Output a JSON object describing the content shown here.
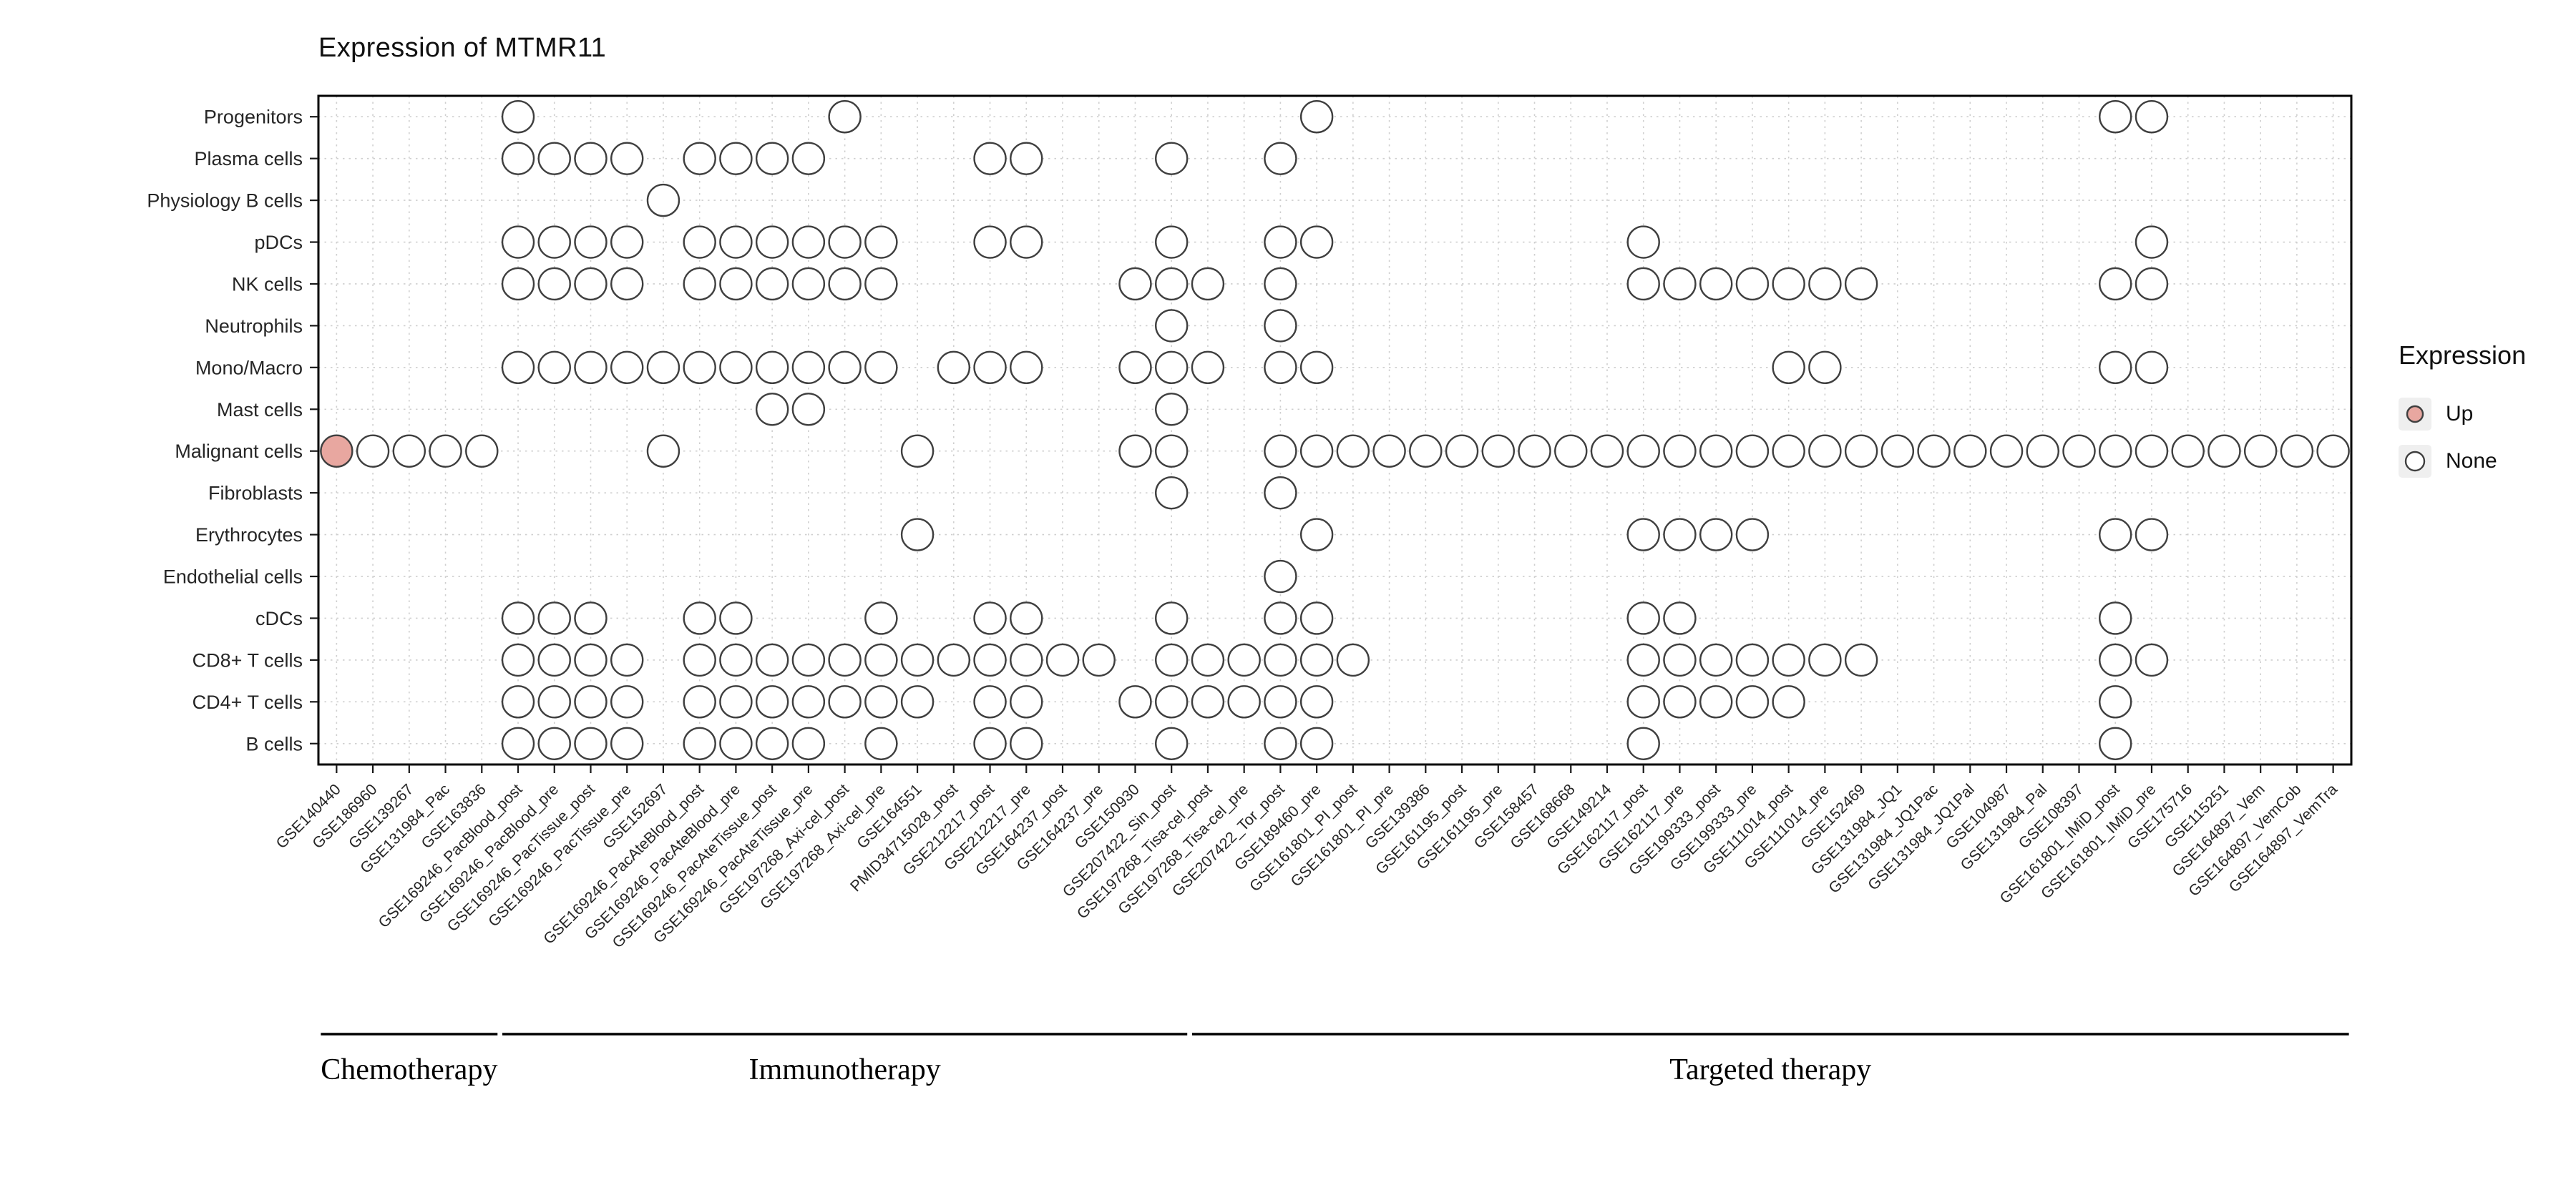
{
  "chart_data": {
    "type": "heatmap",
    "subtype": "dot-matrix",
    "title": "Expression of MTMR11",
    "gene": "MTMR11",
    "xlabel": "",
    "ylabel": "",
    "grid": true,
    "legend_position": "right",
    "legend": {
      "title": "Expression",
      "items": [
        {
          "label": "Up",
          "color": "#E8A7A0"
        },
        {
          "label": "None",
          "color": "#FFFFFF"
        }
      ]
    },
    "colors": {
      "up": "#E8A7A0",
      "none": "#FFFFFF",
      "stroke": "#3F3F3F",
      "grid": "#CFCFCF",
      "border": "#000000",
      "tick": "#1A1A1A",
      "axis_text": "#262626"
    },
    "rows": [
      "Progenitors",
      "Plasma cells",
      "Physiology B cells",
      "pDCs",
      "NK cells",
      "Neutrophils",
      "Mono/Macro",
      "Mast cells",
      "Malignant cells",
      "Fibroblasts",
      "Erythrocytes",
      "Endothelial cells",
      "cDCs",
      "CD8+ T cells",
      "CD4+ T cells",
      "B cells"
    ],
    "columns": [
      "GSE140440",
      "GSE186960",
      "GSE139267",
      "GSE131984_Pac",
      "GSE163836",
      "GSE169246_PacBlood_post",
      "GSE169246_PacBlood_pre",
      "GSE169246_PacTissue_post",
      "GSE169246_PacTissue_pre",
      "GSE152697",
      "GSE169246_PacAteBlood_post",
      "GSE169246_PacAteBlood_pre",
      "GSE169246_PacAteTissue_post",
      "GSE169246_PacAteTissue_pre",
      "GSE197268_Axi-cel_post",
      "GSE197268_Axi-cel_pre",
      "GSE164551",
      "PMID34715028_post",
      "GSE212217_post",
      "GSE212217_pre",
      "GSE164237_post",
      "GSE164237_pre",
      "GSE150930",
      "GSE207422_Sin_post",
      "GSE197268_Tisa-cel_post",
      "GSE197268_Tisa-cel_pre",
      "GSE207422_Tor_post",
      "GSE189460_pre",
      "GSE161801_PI_post",
      "GSE161801_PI_pre",
      "GSE139386",
      "GSE161195_post",
      "GSE161195_pre",
      "GSE158457",
      "GSE168668",
      "GSE149214",
      "GSE162117_post",
      "GSE162117_pre",
      "GSE199333_post",
      "GSE199333_pre",
      "GSE111014_post",
      "GSE111014_pre",
      "GSE152469",
      "GSE131984_JQ1",
      "GSE131984_JQ1Pac",
      "GSE131984_JQ1Pal",
      "GSE104987",
      "GSE131984_Pal",
      "GSE108397",
      "GSE161801_IMiD_post",
      "GSE161801_IMiD_pre",
      "GSE175716",
      "GSE115251",
      "GSE164897_Vem",
      "GSE164897_VemCob",
      "GSE164897_VemTra"
    ],
    "groups": [
      {
        "label": "Chemotherapy",
        "from": 1,
        "to": 5
      },
      {
        "label": "Immunotherapy",
        "from": 6,
        "to": 24
      },
      {
        "label": "Targeted therapy",
        "from": 25,
        "to": 56
      }
    ],
    "cells": [
      {
        "row": "Progenitors",
        "up": [],
        "none": [
          6,
          15,
          28,
          50,
          51
        ]
      },
      {
        "row": "Plasma cells",
        "up": [],
        "none": [
          6,
          7,
          8,
          9,
          11,
          12,
          13,
          14,
          19,
          20,
          24,
          27
        ]
      },
      {
        "row": "Physiology B cells",
        "up": [],
        "none": [
          10
        ]
      },
      {
        "row": "pDCs",
        "up": [],
        "none": [
          6,
          7,
          8,
          9,
          11,
          12,
          13,
          14,
          15,
          16,
          19,
          20,
          24,
          27,
          28,
          37,
          51
        ]
      },
      {
        "row": "NK cells",
        "up": [],
        "none": [
          6,
          7,
          8,
          9,
          11,
          12,
          13,
          14,
          15,
          16,
          23,
          24,
          25,
          27,
          37,
          38,
          39,
          40,
          41,
          42,
          43,
          50,
          51
        ]
      },
      {
        "row": "Neutrophils",
        "up": [],
        "none": [
          24,
          27
        ]
      },
      {
        "row": "Mono/Macro",
        "up": [],
        "none": [
          6,
          7,
          8,
          9,
          10,
          11,
          12,
          13,
          14,
          15,
          16,
          18,
          19,
          20,
          23,
          24,
          25,
          27,
          28,
          41,
          42,
          50,
          51
        ]
      },
      {
        "row": "Mast cells",
        "up": [],
        "none": [
          13,
          14,
          24
        ]
      },
      {
        "row": "Malignant cells",
        "up": [
          1
        ],
        "none": [
          2,
          3,
          4,
          5,
          10,
          17,
          23,
          24,
          27,
          28,
          29,
          30,
          31,
          32,
          33,
          34,
          35,
          36,
          37,
          38,
          39,
          40,
          41,
          42,
          43,
          44,
          45,
          46,
          47,
          48,
          49,
          50,
          51,
          52,
          53,
          54,
          55,
          56
        ]
      },
      {
        "row": "Fibroblasts",
        "up": [],
        "none": [
          24,
          27
        ]
      },
      {
        "row": "Erythrocytes",
        "up": [],
        "none": [
          17,
          28,
          37,
          38,
          39,
          40,
          50,
          51
        ]
      },
      {
        "row": "Endothelial cells",
        "up": [],
        "none": [
          27
        ]
      },
      {
        "row": "cDCs",
        "up": [],
        "none": [
          6,
          7,
          8,
          11,
          12,
          16,
          19,
          20,
          24,
          27,
          28,
          37,
          38,
          50
        ]
      },
      {
        "row": "CD8+ T cells",
        "up": [],
        "none": [
          6,
          7,
          8,
          9,
          11,
          12,
          13,
          14,
          15,
          16,
          17,
          18,
          19,
          20,
          21,
          22,
          24,
          25,
          26,
          27,
          28,
          29,
          37,
          38,
          39,
          40,
          41,
          42,
          43,
          50,
          51
        ]
      },
      {
        "row": "CD4+ T cells",
        "up": [],
        "none": [
          6,
          7,
          8,
          9,
          11,
          12,
          13,
          14,
          15,
          16,
          17,
          19,
          20,
          23,
          24,
          25,
          26,
          27,
          28,
          37,
          38,
          39,
          40,
          41,
          50
        ]
      },
      {
        "row": "B cells",
        "up": [],
        "none": [
          6,
          7,
          8,
          9,
          11,
          12,
          13,
          14,
          16,
          19,
          20,
          24,
          27,
          28,
          37,
          50
        ]
      }
    ]
  }
}
